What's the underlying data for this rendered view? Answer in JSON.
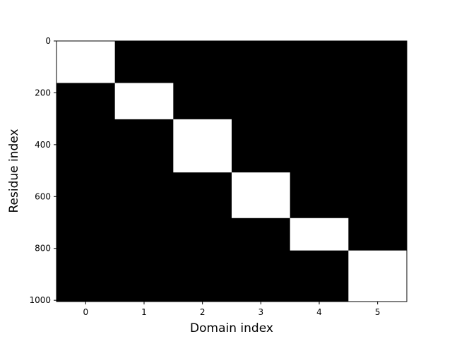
{
  "chart_data": {
    "type": "heatmap",
    "title": "",
    "xlabel": "Domain index",
    "ylabel": "Residue index",
    "x_ticks": [
      0,
      1,
      2,
      3,
      4,
      5
    ],
    "y_ticks": [
      0,
      200,
      400,
      600,
      800,
      1000
    ],
    "xlim": [
      -0.5,
      5.5
    ],
    "ylim": [
      1005,
      0
    ],
    "y_inverted": true,
    "grid": false,
    "colormap": "gray",
    "value_range": [
      0,
      1
    ],
    "background_value": 0,
    "domains": [
      {
        "domain": 0,
        "start": 0,
        "end": 162,
        "value": 1
      },
      {
        "domain": 1,
        "start": 162,
        "end": 302,
        "value": 1
      },
      {
        "domain": 2,
        "start": 302,
        "end": 507,
        "value": 1
      },
      {
        "domain": 3,
        "start": 507,
        "end": 683,
        "value": 1
      },
      {
        "domain": 4,
        "start": 683,
        "end": 808,
        "value": 1
      },
      {
        "domain": 5,
        "start": 808,
        "end": 1005,
        "value": 1
      }
    ],
    "colors": {
      "low": "#000000",
      "high": "#ffffff"
    }
  }
}
